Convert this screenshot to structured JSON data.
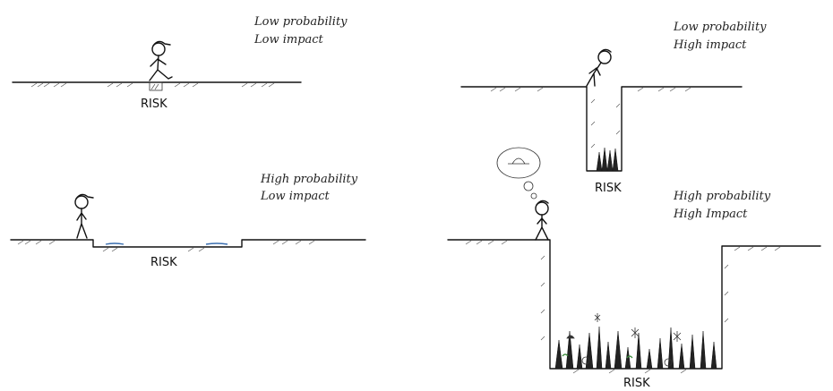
{
  "panels": [
    {
      "id": "low-low",
      "caption_line1": "Low probability",
      "caption_line2": "Low impact",
      "risk_label": "RISK"
    },
    {
      "id": "high-low",
      "caption_line1": "High probability",
      "caption_line2": "Low impact",
      "risk_label": "RISK"
    },
    {
      "id": "low-high",
      "caption_line1": "Low probability",
      "caption_line2": "High impact",
      "risk_label": "RISK"
    },
    {
      "id": "high-high",
      "caption_line1": "High probability",
      "caption_line2": "High Impact",
      "risk_label": "RISK"
    }
  ]
}
